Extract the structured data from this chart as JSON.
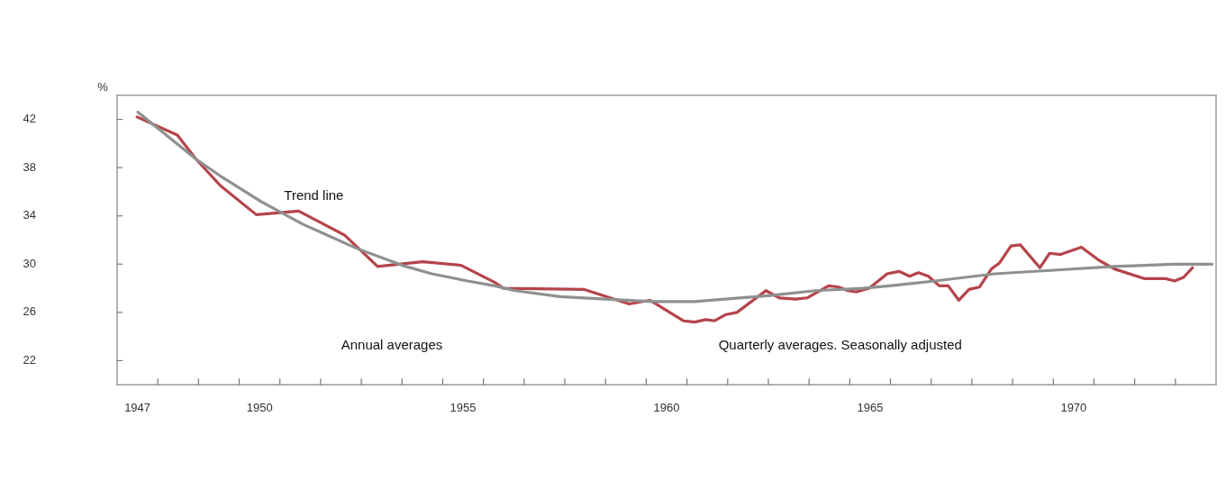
{
  "chart_data": {
    "type": "line",
    "ylabel": "%",
    "marker": "none",
    "legend": false,
    "xlim": [
      1947,
      1974
    ],
    "ylim": [
      20,
      44
    ],
    "yticks": [
      22,
      26,
      30,
      34,
      38,
      42
    ],
    "xticks": [
      {
        "value": 1947.5,
        "label": "1947"
      },
      {
        "value": 1948,
        "label": null
      },
      {
        "value": 1949,
        "label": null
      },
      {
        "value": 1950,
        "label": null
      },
      {
        "value": 1950.5,
        "label": "1950"
      },
      {
        "value": 1951,
        "label": null
      },
      {
        "value": 1952,
        "label": null
      },
      {
        "value": 1953,
        "label": null
      },
      {
        "value": 1954,
        "label": null
      },
      {
        "value": 1955,
        "label": null
      },
      {
        "value": 1955.5,
        "label": "1955"
      },
      {
        "value": 1956,
        "label": null
      },
      {
        "value": 1957,
        "label": null
      },
      {
        "value": 1958,
        "label": null
      },
      {
        "value": 1959,
        "label": null
      },
      {
        "value": 1960,
        "label": null
      },
      {
        "value": 1960.5,
        "label": "1960"
      },
      {
        "value": 1961,
        "label": null
      },
      {
        "value": 1962,
        "label": null
      },
      {
        "value": 1963,
        "label": null
      },
      {
        "value": 1964,
        "label": null
      },
      {
        "value": 1965,
        "label": null
      },
      {
        "value": 1965.5,
        "label": "1965"
      },
      {
        "value": 1966,
        "label": null
      },
      {
        "value": 1967,
        "label": null
      },
      {
        "value": 1968,
        "label": null
      },
      {
        "value": 1969,
        "label": null
      },
      {
        "value": 1970,
        "label": null
      },
      {
        "value": 1970.5,
        "label": "1970"
      },
      {
        "value": 1971,
        "label": null
      },
      {
        "value": 1972,
        "label": null
      },
      {
        "value": 1973,
        "label": null
      }
    ],
    "series": [
      {
        "color": "#8e9190",
        "x": [
          1947.51,
          1948.94,
          1949.54,
          1950.53,
          1951.13,
          1951.57,
          1952.89,
          1954.0,
          1954.73,
          1955.61,
          1956.27,
          1956.78,
          1957.88,
          1958.99,
          1960.18,
          1961.19,
          1961.94,
          1963.05,
          1964.15,
          1965.32,
          1965.98,
          1967.09,
          1968.57,
          1970.02,
          1971.5,
          1972.98,
          1973.9
        ],
        "values": [
          42.6,
          38.7,
          37.3,
          35.2,
          34.1,
          33.3,
          31.3,
          29.9,
          29.2,
          28.6,
          28.2,
          27.8,
          27.3,
          27.1,
          26.9,
          26.9,
          27.1,
          27.4,
          27.8,
          28.0,
          28.2,
          28.6,
          29.2,
          29.5,
          29.8,
          30.0,
          30.0
        ]
      },
      {
        "color": "#b5444b",
        "x": [
          1947.49,
          1948.48,
          1948.94,
          1949.54,
          1950.42,
          1951.46,
          1952.59,
          1953.4,
          1954.51,
          1955.45,
          1956.27,
          1956.49,
          1958.48,
          1959.58,
          1960.09,
          1960.91,
          1961.19,
          1961.46,
          1961.68,
          1961.94,
          1962.23,
          1962.94,
          1963.27,
          1963.67,
          1963.95,
          1964.48,
          1964.73,
          1964.95,
          1965.17,
          1965.48,
          1965.92,
          1966.21,
          1966.47,
          1966.69,
          1966.93,
          1967.2,
          1967.42,
          1967.68,
          1967.93,
          1968.19,
          1968.48,
          1968.68,
          1968.96,
          1969.19,
          1969.67,
          1969.91,
          1970.18,
          1970.69,
          1971.13,
          1971.5,
          1972.23,
          1972.76,
          1972.98,
          1973.2,
          1973.42
        ],
        "values": [
          42.2,
          40.7,
          38.7,
          36.5,
          34.1,
          34.4,
          32.4,
          29.8,
          30.2,
          29.9,
          28.5,
          28.0,
          27.9,
          26.7,
          27.0,
          25.3,
          25.2,
          25.4,
          25.3,
          25.8,
          26.0,
          27.8,
          27.2,
          27.1,
          27.2,
          28.2,
          28.1,
          27.8,
          27.7,
          28.0,
          29.2,
          29.4,
          29.0,
          29.3,
          29.0,
          28.2,
          28.2,
          27.0,
          27.9,
          28.1,
          29.6,
          30.1,
          31.5,
          31.6,
          29.7,
          30.9,
          30.8,
          31.4,
          30.3,
          29.6,
          28.8,
          28.8,
          28.6,
          28.9,
          29.7
        ]
      }
    ],
    "annotations": [
      "Trend line",
      "Annual averages",
      "Quarterly averages. Seasonally adjusted"
    ]
  }
}
